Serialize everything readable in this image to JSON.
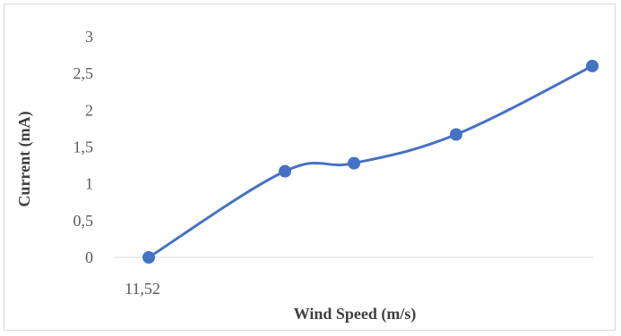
{
  "chart_data": {
    "type": "line",
    "title": "",
    "xlabel": "Wind Speed (m/s)",
    "ylabel": "Current (mA)",
    "x_tick_labels": [
      "11,52"
    ],
    "y_tick_labels": [
      "0",
      "0,5",
      "1",
      "1,5",
      "2",
      "2,5",
      "3"
    ],
    "ylim": [
      0,
      3
    ],
    "y_ticks": [
      0,
      0.5,
      1,
      1.5,
      2,
      2.5,
      3
    ],
    "series": [
      {
        "values": [
          0,
          1.17,
          1.28,
          1.67,
          2.6
        ]
      }
    ],
    "smooth": true,
    "markers": true,
    "grid": false,
    "legend": "none",
    "colors": {
      "series": "#4472c4",
      "axis": "#d9d9d9",
      "text": "#595959"
    }
  }
}
